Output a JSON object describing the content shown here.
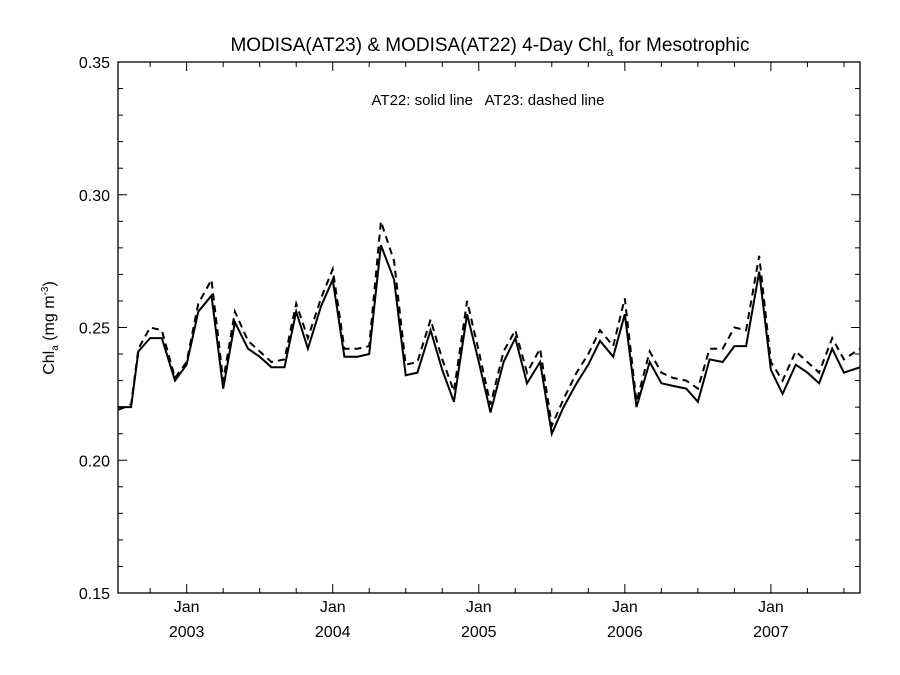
{
  "chart_data": {
    "type": "line",
    "title_main": "MODISA(AT23) & MODISA(AT22) 4-Day Chl",
    "title_sub": "a",
    "title_rest": " for Mesotrophic",
    "ylabel_main": "Chl",
    "ylabel_sub": "a",
    "ylabel_mid": " (mg m",
    "ylabel_sup": "-3",
    "ylabel_end": ")",
    "annotation": "AT22: solid line   AT23: dashed line",
    "ylim": [
      0.15,
      0.35
    ],
    "y_ticks": [
      "0.15",
      "0.20",
      "0.25",
      "0.30",
      "0.35"
    ],
    "xlim": [
      2002.53,
      2007.61
    ],
    "x_ticks": [
      {
        "month": "Jan",
        "year": "2003",
        "x": 2003.0
      },
      {
        "month": "Jan",
        "year": "2004",
        "x": 2004.0
      },
      {
        "month": "Jan",
        "year": "2005",
        "x": 2005.0
      },
      {
        "month": "Jan",
        "year": "2006",
        "x": 2006.0
      },
      {
        "month": "Jan",
        "year": "2007",
        "x": 2007.0
      }
    ],
    "series": [
      {
        "name": "AT22",
        "style": "solid",
        "x": [
          2002.53,
          2002.58,
          2002.62,
          2002.67,
          2002.75,
          2002.83,
          2002.92,
          2003.0,
          2003.08,
          2003.17,
          2003.25,
          2003.33,
          2003.42,
          2003.5,
          2003.58,
          2003.67,
          2003.75,
          2003.83,
          2003.92,
          2004.0,
          2004.08,
          2004.17,
          2004.25,
          2004.33,
          2004.42,
          2004.5,
          2004.58,
          2004.67,
          2004.75,
          2004.83,
          2004.92,
          2005.0,
          2005.08,
          2005.17,
          2005.25,
          2005.33,
          2005.42,
          2005.5,
          2005.58,
          2005.67,
          2005.75,
          2005.83,
          2005.92,
          2006.0,
          2006.08,
          2006.17,
          2006.25,
          2006.33,
          2006.42,
          2006.5,
          2006.58,
          2006.67,
          2006.75,
          2006.83,
          2006.92,
          2007.0,
          2007.08,
          2007.17,
          2007.25,
          2007.33,
          2007.42,
          2007.5,
          2007.61
        ],
        "values": [
          0.219,
          0.22,
          0.22,
          0.241,
          0.246,
          0.246,
          0.23,
          0.236,
          0.256,
          0.262,
          0.227,
          0.252,
          0.242,
          0.239,
          0.235,
          0.235,
          0.256,
          0.242,
          0.258,
          0.268,
          0.239,
          0.239,
          0.24,
          0.281,
          0.268,
          0.232,
          0.233,
          0.249,
          0.234,
          0.222,
          0.255,
          0.237,
          0.218,
          0.237,
          0.246,
          0.229,
          0.237,
          0.21,
          0.22,
          0.229,
          0.236,
          0.245,
          0.239,
          0.255,
          0.22,
          0.237,
          0.229,
          0.228,
          0.227,
          0.222,
          0.238,
          0.237,
          0.243,
          0.243,
          0.271,
          0.234,
          0.225,
          0.236,
          0.233,
          0.229,
          0.242,
          0.233,
          0.235
        ]
      },
      {
        "name": "AT23",
        "style": "dashed",
        "x": [
          2002.53,
          2002.58,
          2002.62,
          2002.67,
          2002.75,
          2002.83,
          2002.92,
          2003.0,
          2003.08,
          2003.17,
          2003.25,
          2003.33,
          2003.42,
          2003.5,
          2003.58,
          2003.67,
          2003.75,
          2003.83,
          2003.92,
          2004.0,
          2004.08,
          2004.17,
          2004.25,
          2004.33,
          2004.42,
          2004.5,
          2004.58,
          2004.67,
          2004.75,
          2004.83,
          2004.92,
          2005.0,
          2005.08,
          2005.17,
          2005.25,
          2005.33,
          2005.42,
          2005.5,
          2005.58,
          2005.67,
          2005.75,
          2005.83,
          2005.92,
          2006.0,
          2006.08,
          2006.17,
          2006.25,
          2006.33,
          2006.42,
          2006.5,
          2006.58,
          2006.67,
          2006.75,
          2006.83,
          2006.92,
          2007.0,
          2007.08,
          2007.17,
          2007.25,
          2007.33,
          2007.42,
          2007.5,
          2007.61
        ],
        "values": [
          0.22,
          0.22,
          0.221,
          0.242,
          0.25,
          0.249,
          0.231,
          0.237,
          0.259,
          0.268,
          0.23,
          0.256,
          0.245,
          0.241,
          0.237,
          0.238,
          0.259,
          0.246,
          0.261,
          0.272,
          0.242,
          0.242,
          0.243,
          0.29,
          0.275,
          0.236,
          0.237,
          0.253,
          0.238,
          0.226,
          0.26,
          0.241,
          0.221,
          0.241,
          0.249,
          0.233,
          0.242,
          0.213,
          0.223,
          0.233,
          0.24,
          0.249,
          0.243,
          0.261,
          0.222,
          0.241,
          0.233,
          0.231,
          0.23,
          0.227,
          0.242,
          0.242,
          0.25,
          0.249,
          0.277,
          0.237,
          0.23,
          0.241,
          0.237,
          0.233,
          0.246,
          0.238,
          0.242
        ]
      }
    ]
  }
}
